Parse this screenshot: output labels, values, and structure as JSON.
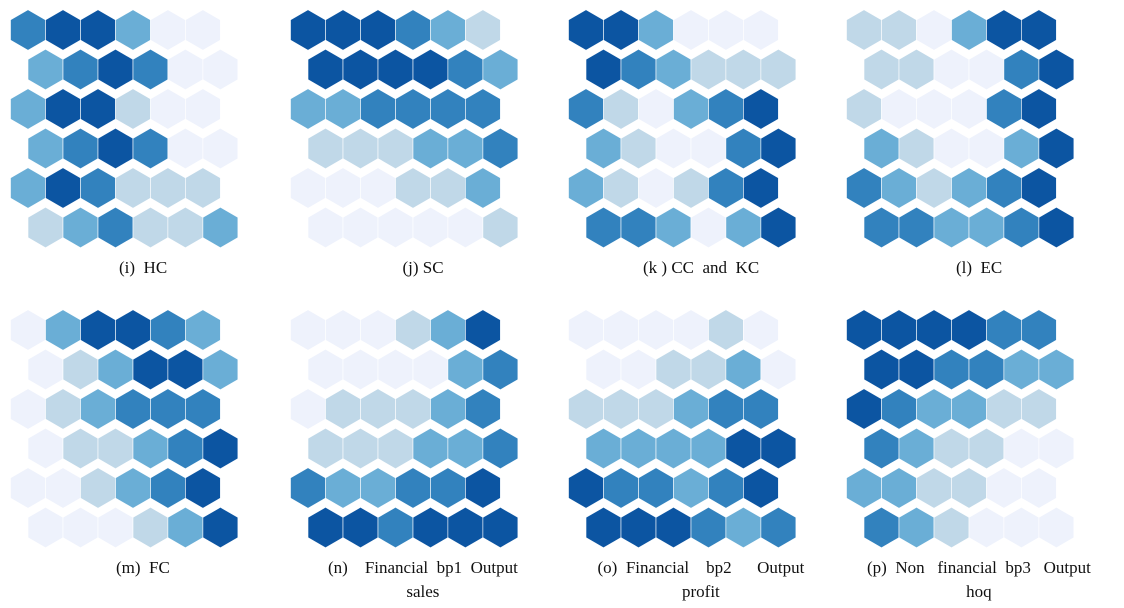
{
  "palette": {
    "0": "#eef2fc",
    "1": "#c0d8e8",
    "2": "#6aaed6",
    "3": "#3282be",
    "4": "#0c55a2"
  },
  "panels": [
    {
      "id": "i",
      "caption": "(i)  HC",
      "caption2": "",
      "grid": [
        [
          3,
          4,
          4,
          2,
          0,
          0
        ],
        [
          2,
          3,
          4,
          3,
          0,
          0
        ],
        [
          2,
          4,
          4,
          1,
          0,
          0
        ],
        [
          2,
          3,
          4,
          3,
          0,
          0
        ],
        [
          2,
          4,
          3,
          1,
          1,
          1
        ],
        [
          1,
          2,
          3,
          1,
          1,
          2
        ]
      ]
    },
    {
      "id": "j",
      "caption": "(j) SC",
      "caption2": "",
      "grid": [
        [
          4,
          4,
          4,
          3,
          2,
          1
        ],
        [
          4,
          4,
          4,
          4,
          3,
          2
        ],
        [
          2,
          2,
          3,
          3,
          3,
          3
        ],
        [
          1,
          1,
          1,
          2,
          2,
          3
        ],
        [
          0,
          0,
          0,
          1,
          1,
          2
        ],
        [
          0,
          0,
          0,
          0,
          0,
          1
        ]
      ]
    },
    {
      "id": "k",
      "caption": "(k ) CC  and  KC",
      "caption2": "",
      "grid": [
        [
          4,
          4,
          2,
          0,
          0,
          0
        ],
        [
          4,
          3,
          2,
          1,
          1,
          1
        ],
        [
          3,
          1,
          0,
          2,
          3,
          4
        ],
        [
          2,
          1,
          0,
          0,
          3,
          4
        ],
        [
          2,
          1,
          0,
          1,
          3,
          4
        ],
        [
          3,
          3,
          2,
          0,
          2,
          4
        ]
      ]
    },
    {
      "id": "l",
      "caption": "(l)  EC",
      "caption2": "",
      "grid": [
        [
          1,
          1,
          0,
          2,
          4,
          4
        ],
        [
          1,
          1,
          0,
          0,
          3,
          4
        ],
        [
          1,
          0,
          0,
          0,
          3,
          4
        ],
        [
          2,
          1,
          0,
          0,
          2,
          4
        ],
        [
          3,
          2,
          1,
          2,
          3,
          4
        ],
        [
          3,
          3,
          2,
          2,
          3,
          4
        ]
      ]
    },
    {
      "id": "m",
      "caption": "(m)  FC",
      "caption2": "",
      "grid": [
        [
          0,
          2,
          4,
          4,
          3,
          2
        ],
        [
          0,
          1,
          2,
          4,
          4,
          2
        ],
        [
          0,
          1,
          2,
          3,
          3,
          3
        ],
        [
          0,
          1,
          1,
          2,
          3,
          4
        ],
        [
          0,
          0,
          1,
          2,
          3,
          4
        ],
        [
          0,
          0,
          0,
          1,
          2,
          4
        ]
      ]
    },
    {
      "id": "n",
      "caption": "(n)    Financial  bp1  Output",
      "caption2": "sales",
      "grid": [
        [
          0,
          0,
          0,
          1,
          2,
          4
        ],
        [
          0,
          0,
          0,
          0,
          2,
          3
        ],
        [
          0,
          1,
          1,
          1,
          2,
          3
        ],
        [
          1,
          1,
          1,
          2,
          2,
          3
        ],
        [
          3,
          2,
          2,
          3,
          3,
          4
        ],
        [
          4,
          4,
          3,
          4,
          4,
          4
        ]
      ]
    },
    {
      "id": "o",
      "caption": "(o)  Financial    bp2      Output",
      "caption2": "profit",
      "grid": [
        [
          0,
          0,
          0,
          0,
          1,
          0
        ],
        [
          0,
          0,
          1,
          1,
          2,
          0
        ],
        [
          1,
          1,
          1,
          2,
          3,
          3
        ],
        [
          2,
          2,
          2,
          2,
          4,
          4
        ],
        [
          4,
          3,
          3,
          2,
          3,
          4
        ],
        [
          4,
          4,
          4,
          3,
          2,
          3
        ]
      ]
    },
    {
      "id": "p",
      "caption": "(p)  Non   financial  bp3   Output",
      "caption2": "hoq",
      "grid": [
        [
          4,
          4,
          4,
          4,
          3,
          3
        ],
        [
          4,
          4,
          3,
          3,
          2,
          2
        ],
        [
          4,
          3,
          2,
          2,
          1,
          1
        ],
        [
          3,
          2,
          1,
          1,
          0,
          0
        ],
        [
          2,
          2,
          1,
          1,
          0,
          0
        ],
        [
          3,
          2,
          1,
          0,
          0,
          0
        ]
      ]
    }
  ]
}
